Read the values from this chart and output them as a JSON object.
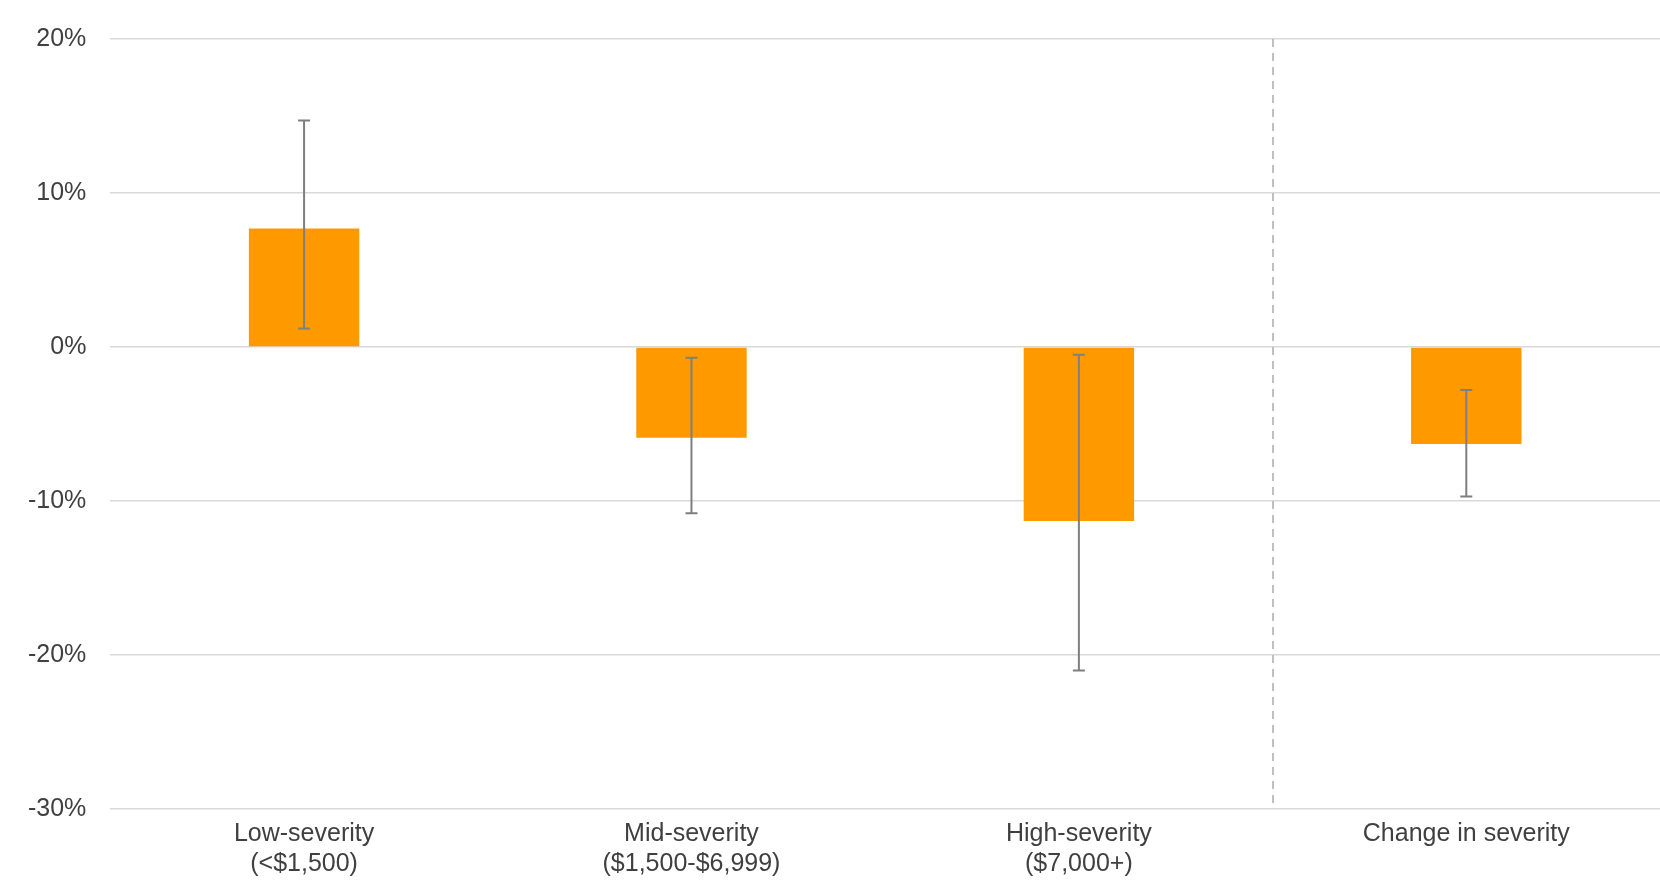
{
  "chart_data": {
    "type": "bar",
    "categories": [
      "Low-severity\n(<$1,500)",
      "Mid-severity\n($1,500-$6,999)",
      "High-severity\n($7,000+)",
      "Change in severity"
    ],
    "values": [
      7.7,
      -5.9,
      -11.3,
      -6.3
    ],
    "errors": [
      [
        1.2,
        14.7
      ],
      [
        -10.8,
        -0.7
      ],
      [
        -21.0,
        -0.5
      ],
      [
        -9.7,
        -2.8
      ]
    ],
    "color": "#ff9900",
    "ylim": [
      -30,
      20
    ],
    "yticks": [
      {
        "value": -30,
        "label": "-30%"
      },
      {
        "value": -20,
        "label": "-20%"
      },
      {
        "value": -10,
        "label": "-10%"
      },
      {
        "value": 0,
        "label": "0%"
      },
      {
        "value": 10,
        "label": "10%"
      },
      {
        "value": 20,
        "label": "20%"
      }
    ],
    "grid": "y",
    "legend": false
  }
}
